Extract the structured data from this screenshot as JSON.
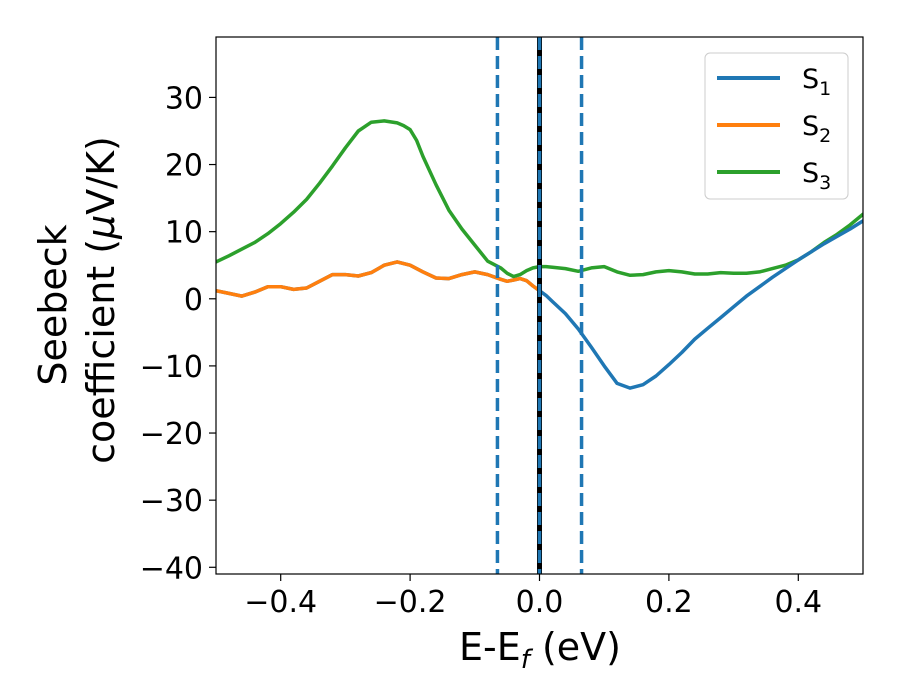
{
  "chart_data": {
    "type": "line",
    "xlabel": "E-E",
    "xlabel_sub": "f",
    "xlabel_unit": " (eV)",
    "ylabel_line1": "Seebeck",
    "ylabel_line2_prefix": "coefficient  (",
    "ylabel_mu": "μ",
    "ylabel_line2_suffix": "V/K)",
    "xlim": [
      -0.5,
      0.5
    ],
    "ylim": [
      -41,
      39
    ],
    "xticks": [
      -0.4,
      -0.2,
      0.0,
      0.2,
      0.4
    ],
    "xtick_labels": [
      "−0.4",
      "−0.2",
      "0.0",
      "0.2",
      "0.4"
    ],
    "yticks": [
      -40,
      -30,
      -20,
      -10,
      0,
      10,
      20,
      30
    ],
    "ytick_labels": [
      "−40",
      "−30",
      "−20",
      "−10",
      "0",
      "10",
      "20",
      "30"
    ],
    "legend_position": "top-right",
    "vlines": [
      {
        "x": -0.065,
        "style": "dashed",
        "color": "#1f77b4"
      },
      {
        "x": 0.0,
        "style": "solid",
        "color": "#000000"
      },
      {
        "x": 0.0,
        "style": "dashed",
        "color": "#1f77b4"
      },
      {
        "x": 0.065,
        "style": "dashed",
        "color": "#1f77b4"
      }
    ],
    "series": [
      {
        "name": "S",
        "sub": "1",
        "color": "#1f77b4",
        "x": [
          -0.5,
          -0.48,
          -0.46,
          -0.44,
          -0.42,
          -0.4,
          -0.38,
          -0.36,
          -0.34,
          -0.32,
          -0.3,
          -0.28,
          -0.26,
          -0.24,
          -0.22,
          -0.2,
          -0.18,
          -0.16,
          -0.14,
          -0.12,
          -0.1,
          -0.08,
          -0.06,
          -0.05,
          -0.04,
          -0.03,
          -0.02,
          -0.01,
          0.0,
          0.01,
          0.02,
          0.04,
          0.06,
          0.08,
          0.1,
          0.12,
          0.14,
          0.16,
          0.18,
          0.2,
          0.22,
          0.24,
          0.26,
          0.28,
          0.3,
          0.32,
          0.34,
          0.36,
          0.38,
          0.4,
          0.42,
          0.44,
          0.46,
          0.48,
          0.5
        ],
        "y": [
          1.2,
          0.8,
          0.4,
          1.0,
          1.8,
          1.8,
          1.4,
          1.6,
          2.6,
          3.6,
          3.6,
          3.4,
          3.9,
          5.0,
          5.5,
          5.0,
          4.0,
          3.1,
          3.0,
          3.6,
          4.0,
          3.6,
          2.9,
          2.6,
          2.8,
          3.0,
          2.7,
          1.9,
          1.2,
          0.5,
          -0.4,
          -2.2,
          -4.5,
          -7.2,
          -10.0,
          -12.6,
          -13.3,
          -12.8,
          -11.5,
          -9.8,
          -8.0,
          -6.0,
          -4.4,
          -2.8,
          -1.2,
          0.4,
          1.8,
          3.2,
          4.5,
          5.8,
          7.0,
          8.2,
          9.3,
          10.4,
          11.6
        ]
      },
      {
        "name": "S",
        "sub": "2",
        "color": "#ff7f0e",
        "x": [
          -0.5,
          -0.48,
          -0.46,
          -0.44,
          -0.42,
          -0.4,
          -0.38,
          -0.36,
          -0.34,
          -0.32,
          -0.3,
          -0.28,
          -0.26,
          -0.24,
          -0.22,
          -0.2,
          -0.18,
          -0.16,
          -0.14,
          -0.12,
          -0.1,
          -0.08,
          -0.06,
          -0.05,
          -0.04,
          -0.03,
          -0.02,
          -0.01,
          0.0
        ],
        "y": [
          1.2,
          0.8,
          0.4,
          1.0,
          1.8,
          1.8,
          1.4,
          1.6,
          2.6,
          3.6,
          3.6,
          3.4,
          3.9,
          5.0,
          5.5,
          5.0,
          4.0,
          3.1,
          3.0,
          3.6,
          4.0,
          3.6,
          2.9,
          2.6,
          2.8,
          3.0,
          2.7,
          1.9,
          1.2
        ]
      },
      {
        "name": "S",
        "sub": "3",
        "color": "#2ca02c",
        "x": [
          -0.5,
          -0.48,
          -0.46,
          -0.44,
          -0.42,
          -0.4,
          -0.38,
          -0.36,
          -0.34,
          -0.32,
          -0.3,
          -0.28,
          -0.26,
          -0.24,
          -0.22,
          -0.21,
          -0.2,
          -0.19,
          -0.18,
          -0.16,
          -0.14,
          -0.12,
          -0.1,
          -0.08,
          -0.06,
          -0.05,
          -0.04,
          -0.03,
          -0.02,
          -0.01,
          0.0,
          0.01,
          0.02,
          0.04,
          0.06,
          0.08,
          0.1,
          0.12,
          0.14,
          0.16,
          0.18,
          0.2,
          0.22,
          0.24,
          0.26,
          0.28,
          0.3,
          0.32,
          0.34,
          0.36,
          0.38,
          0.4,
          0.42,
          0.44,
          0.46,
          0.48,
          0.5
        ],
        "y": [
          5.5,
          6.4,
          7.4,
          8.4,
          9.7,
          11.2,
          12.9,
          14.8,
          17.2,
          19.8,
          22.5,
          25.0,
          26.3,
          26.5,
          26.2,
          25.8,
          25.2,
          23.6,
          21.2,
          17.0,
          13.2,
          10.4,
          8.0,
          5.6,
          4.6,
          3.8,
          3.3,
          3.6,
          4.2,
          4.6,
          4.8,
          4.8,
          4.7,
          4.5,
          4.1,
          4.6,
          4.8,
          4.0,
          3.5,
          3.6,
          4.0,
          4.2,
          4.0,
          3.7,
          3.7,
          3.9,
          3.8,
          3.8,
          4.0,
          4.5,
          5.0,
          5.8,
          7.0,
          8.4,
          9.6,
          11.0,
          12.6
        ]
      }
    ]
  }
}
